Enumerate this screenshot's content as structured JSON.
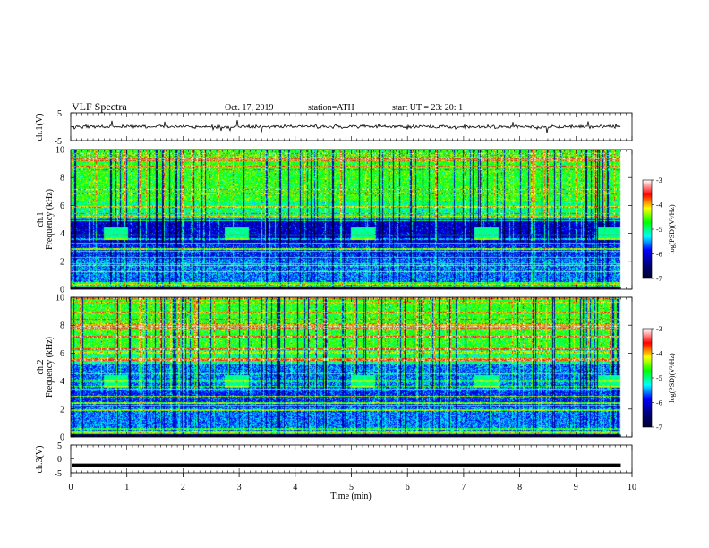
{
  "header": {
    "title": "VLF  Spectra",
    "date": "Oct. 17, 2019",
    "station": "station=ATH",
    "start": "start  UT  =    23: 20: 1"
  },
  "chart_data": [
    {
      "type": "line",
      "panel": "ch1-waveform",
      "ylabel": "ch.1(V)",
      "ylim": [
        -5,
        5
      ],
      "yticks": [
        "5",
        "-5"
      ],
      "xlim": [
        0,
        10
      ],
      "trace": "noisy waveform around 0 V, amplitude about ±1 V, occasional spikes to ±3 V"
    },
    {
      "type": "heatmap",
      "panel": "ch1-spectrogram",
      "ylabel": "ch.1\nFrequency (kHz)",
      "ylim": [
        0,
        10
      ],
      "yticks": [
        "10",
        "8",
        "6",
        "4",
        "2",
        "0"
      ],
      "xlim": [
        0,
        9.8
      ],
      "colorbar": {
        "label": "log(PSD)(V²/Hz)",
        "range": [
          -7,
          -3
        ],
        "ticks": [
          "-3",
          "-4",
          "-5",
          "-6",
          "-7"
        ]
      },
      "features": {
        "high_band_level": -4.8,
        "dark_band_khz": [
          3.5,
          5.0
        ],
        "pulse_times_min": [
          0.8,
          2.95,
          5.2,
          7.4,
          9.6
        ],
        "pulse_freq_khz": 4.0
      }
    },
    {
      "type": "heatmap",
      "panel": "ch2-spectrogram",
      "ylabel": "ch.2\nFrequency (kHz)",
      "ylim": [
        0,
        10
      ],
      "yticks": [
        "10",
        "8",
        "6",
        "4",
        "2",
        "0"
      ],
      "xlim": [
        0,
        9.8
      ],
      "colorbar": {
        "label": "log(PSD)(V²/Hz)",
        "range": [
          -7,
          -3
        ],
        "ticks": [
          "-3",
          "-4",
          "-5",
          "-6",
          "-7"
        ]
      },
      "features": {
        "high_band_level": -4.8,
        "pulse_times_min": [
          0.8,
          2.95,
          5.2,
          7.4,
          9.6
        ],
        "pulse_freq_khz": 4.0
      }
    },
    {
      "type": "line",
      "panel": "ch3-waveform",
      "ylabel": "ch.3(V)",
      "ylim": [
        -5,
        5
      ],
      "yticks": [
        "5",
        "0",
        "-5"
      ],
      "xlim": [
        0,
        10
      ],
      "trace": "thick flat line at about -2.3 V"
    }
  ],
  "x_axis": {
    "label": "Time  (min)",
    "range": [
      0,
      10
    ],
    "ticks": [
      "0",
      "1",
      "2",
      "3",
      "4",
      "5",
      "6",
      "7",
      "8",
      "9",
      "10"
    ]
  },
  "colors": {
    "dark": "#000033",
    "navy": "#000080",
    "blue": "#0000ff",
    "cyan": "#00ffff",
    "green": "#00ff00",
    "yellow": "#ffff00",
    "red": "#ff0000",
    "white": "#ffffff"
  }
}
